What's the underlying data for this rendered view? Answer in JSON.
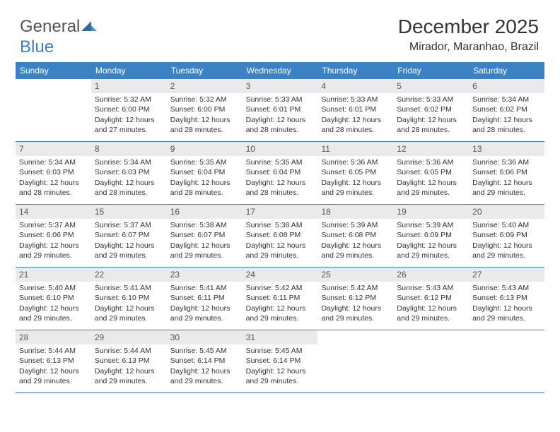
{
  "logo": {
    "text1": "General",
    "text2": "Blue"
  },
  "header": {
    "month_title": "December 2025",
    "location": "Mirador, Maranhao, Brazil"
  },
  "weekdays": [
    "Sunday",
    "Monday",
    "Tuesday",
    "Wednesday",
    "Thursday",
    "Friday",
    "Saturday"
  ],
  "colors": {
    "header_bar": "#3b82c4",
    "row_divider": "#3b7fc4",
    "daynum_bg": "#e9eaeb"
  },
  "weeks": [
    [
      {
        "day": "",
        "sunrise": "",
        "sunset": "",
        "daylight1": "",
        "daylight2": ""
      },
      {
        "day": "1",
        "sunrise": "Sunrise: 5:32 AM",
        "sunset": "Sunset: 6:00 PM",
        "daylight1": "Daylight: 12 hours",
        "daylight2": "and 27 minutes."
      },
      {
        "day": "2",
        "sunrise": "Sunrise: 5:32 AM",
        "sunset": "Sunset: 6:00 PM",
        "daylight1": "Daylight: 12 hours",
        "daylight2": "and 28 minutes."
      },
      {
        "day": "3",
        "sunrise": "Sunrise: 5:33 AM",
        "sunset": "Sunset: 6:01 PM",
        "daylight1": "Daylight: 12 hours",
        "daylight2": "and 28 minutes."
      },
      {
        "day": "4",
        "sunrise": "Sunrise: 5:33 AM",
        "sunset": "Sunset: 6:01 PM",
        "daylight1": "Daylight: 12 hours",
        "daylight2": "and 28 minutes."
      },
      {
        "day": "5",
        "sunrise": "Sunrise: 5:33 AM",
        "sunset": "Sunset: 6:02 PM",
        "daylight1": "Daylight: 12 hours",
        "daylight2": "and 28 minutes."
      },
      {
        "day": "6",
        "sunrise": "Sunrise: 5:34 AM",
        "sunset": "Sunset: 6:02 PM",
        "daylight1": "Daylight: 12 hours",
        "daylight2": "and 28 minutes."
      }
    ],
    [
      {
        "day": "7",
        "sunrise": "Sunrise: 5:34 AM",
        "sunset": "Sunset: 6:03 PM",
        "daylight1": "Daylight: 12 hours",
        "daylight2": "and 28 minutes."
      },
      {
        "day": "8",
        "sunrise": "Sunrise: 5:34 AM",
        "sunset": "Sunset: 6:03 PM",
        "daylight1": "Daylight: 12 hours",
        "daylight2": "and 28 minutes."
      },
      {
        "day": "9",
        "sunrise": "Sunrise: 5:35 AM",
        "sunset": "Sunset: 6:04 PM",
        "daylight1": "Daylight: 12 hours",
        "daylight2": "and 28 minutes."
      },
      {
        "day": "10",
        "sunrise": "Sunrise: 5:35 AM",
        "sunset": "Sunset: 6:04 PM",
        "daylight1": "Daylight: 12 hours",
        "daylight2": "and 28 minutes."
      },
      {
        "day": "11",
        "sunrise": "Sunrise: 5:36 AM",
        "sunset": "Sunset: 6:05 PM",
        "daylight1": "Daylight: 12 hours",
        "daylight2": "and 29 minutes."
      },
      {
        "day": "12",
        "sunrise": "Sunrise: 5:36 AM",
        "sunset": "Sunset: 6:05 PM",
        "daylight1": "Daylight: 12 hours",
        "daylight2": "and 29 minutes."
      },
      {
        "day": "13",
        "sunrise": "Sunrise: 5:36 AM",
        "sunset": "Sunset: 6:06 PM",
        "daylight1": "Daylight: 12 hours",
        "daylight2": "and 29 minutes."
      }
    ],
    [
      {
        "day": "14",
        "sunrise": "Sunrise: 5:37 AM",
        "sunset": "Sunset: 6:06 PM",
        "daylight1": "Daylight: 12 hours",
        "daylight2": "and 29 minutes."
      },
      {
        "day": "15",
        "sunrise": "Sunrise: 5:37 AM",
        "sunset": "Sunset: 6:07 PM",
        "daylight1": "Daylight: 12 hours",
        "daylight2": "and 29 minutes."
      },
      {
        "day": "16",
        "sunrise": "Sunrise: 5:38 AM",
        "sunset": "Sunset: 6:07 PM",
        "daylight1": "Daylight: 12 hours",
        "daylight2": "and 29 minutes."
      },
      {
        "day": "17",
        "sunrise": "Sunrise: 5:38 AM",
        "sunset": "Sunset: 6:08 PM",
        "daylight1": "Daylight: 12 hours",
        "daylight2": "and 29 minutes."
      },
      {
        "day": "18",
        "sunrise": "Sunrise: 5:39 AM",
        "sunset": "Sunset: 6:08 PM",
        "daylight1": "Daylight: 12 hours",
        "daylight2": "and 29 minutes."
      },
      {
        "day": "19",
        "sunrise": "Sunrise: 5:39 AM",
        "sunset": "Sunset: 6:09 PM",
        "daylight1": "Daylight: 12 hours",
        "daylight2": "and 29 minutes."
      },
      {
        "day": "20",
        "sunrise": "Sunrise: 5:40 AM",
        "sunset": "Sunset: 6:09 PM",
        "daylight1": "Daylight: 12 hours",
        "daylight2": "and 29 minutes."
      }
    ],
    [
      {
        "day": "21",
        "sunrise": "Sunrise: 5:40 AM",
        "sunset": "Sunset: 6:10 PM",
        "daylight1": "Daylight: 12 hours",
        "daylight2": "and 29 minutes."
      },
      {
        "day": "22",
        "sunrise": "Sunrise: 5:41 AM",
        "sunset": "Sunset: 6:10 PM",
        "daylight1": "Daylight: 12 hours",
        "daylight2": "and 29 minutes."
      },
      {
        "day": "23",
        "sunrise": "Sunrise: 5:41 AM",
        "sunset": "Sunset: 6:11 PM",
        "daylight1": "Daylight: 12 hours",
        "daylight2": "and 29 minutes."
      },
      {
        "day": "24",
        "sunrise": "Sunrise: 5:42 AM",
        "sunset": "Sunset: 6:11 PM",
        "daylight1": "Daylight: 12 hours",
        "daylight2": "and 29 minutes."
      },
      {
        "day": "25",
        "sunrise": "Sunrise: 5:42 AM",
        "sunset": "Sunset: 6:12 PM",
        "daylight1": "Daylight: 12 hours",
        "daylight2": "and 29 minutes."
      },
      {
        "day": "26",
        "sunrise": "Sunrise: 5:43 AM",
        "sunset": "Sunset: 6:12 PM",
        "daylight1": "Daylight: 12 hours",
        "daylight2": "and 29 minutes."
      },
      {
        "day": "27",
        "sunrise": "Sunrise: 5:43 AM",
        "sunset": "Sunset: 6:13 PM",
        "daylight1": "Daylight: 12 hours",
        "daylight2": "and 29 minutes."
      }
    ],
    [
      {
        "day": "28",
        "sunrise": "Sunrise: 5:44 AM",
        "sunset": "Sunset: 6:13 PM",
        "daylight1": "Daylight: 12 hours",
        "daylight2": "and 29 minutes."
      },
      {
        "day": "29",
        "sunrise": "Sunrise: 5:44 AM",
        "sunset": "Sunset: 6:13 PM",
        "daylight1": "Daylight: 12 hours",
        "daylight2": "and 29 minutes."
      },
      {
        "day": "30",
        "sunrise": "Sunrise: 5:45 AM",
        "sunset": "Sunset: 6:14 PM",
        "daylight1": "Daylight: 12 hours",
        "daylight2": "and 29 minutes."
      },
      {
        "day": "31",
        "sunrise": "Sunrise: 5:45 AM",
        "sunset": "Sunset: 6:14 PM",
        "daylight1": "Daylight: 12 hours",
        "daylight2": "and 29 minutes."
      },
      {
        "day": "",
        "sunrise": "",
        "sunset": "",
        "daylight1": "",
        "daylight2": ""
      },
      {
        "day": "",
        "sunrise": "",
        "sunset": "",
        "daylight1": "",
        "daylight2": ""
      },
      {
        "day": "",
        "sunrise": "",
        "sunset": "",
        "daylight1": "",
        "daylight2": ""
      }
    ]
  ]
}
